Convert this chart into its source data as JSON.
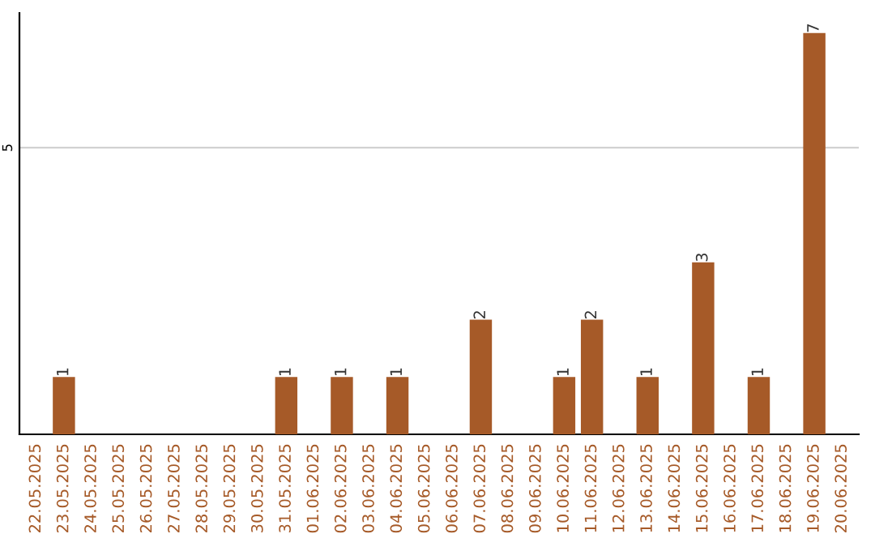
{
  "chart_data": {
    "type": "bar",
    "categories": [
      "22.05.2025",
      "23.05.2025",
      "24.05.2025",
      "25.05.2025",
      "26.05.2025",
      "27.05.2025",
      "28.05.2025",
      "29.05.2025",
      "30.05.2025",
      "31.05.2025",
      "01.06.2025",
      "02.06.2025",
      "03.06.2025",
      "04.06.2025",
      "05.06.2025",
      "06.06.2025",
      "07.06.2025",
      "08.06.2025",
      "09.06.2025",
      "10.06.2025",
      "11.06.2025",
      "12.06.2025",
      "13.06.2025",
      "14.06.2025",
      "15.06.2025",
      "16.06.2025",
      "17.06.2025",
      "18.06.2025",
      "19.06.2025",
      "20.06.2025"
    ],
    "values": [
      null,
      1,
      null,
      null,
      null,
      null,
      null,
      null,
      null,
      1,
      null,
      1,
      null,
      1,
      null,
      null,
      2,
      null,
      null,
      1,
      2,
      null,
      1,
      null,
      3,
      null,
      1,
      null,
      7,
      null
    ],
    "color": "#a65a28",
    "ylim": [
      0,
      7.35
    ],
    "yticks": [
      5
    ],
    "grid": "y",
    "data_labels": true
  }
}
